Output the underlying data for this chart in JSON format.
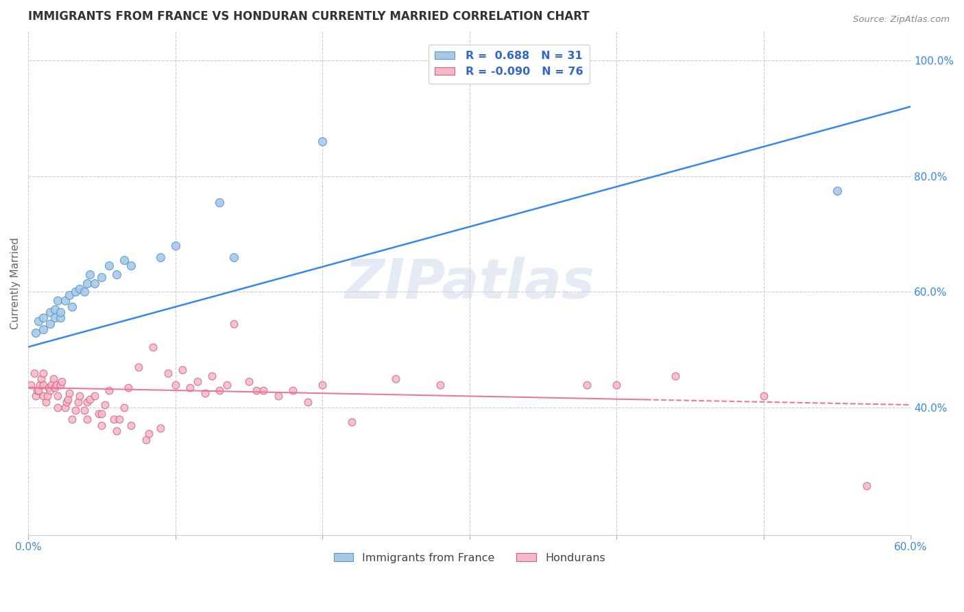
{
  "title": "IMMIGRANTS FROM FRANCE VS HONDURAN CURRENTLY MARRIED CORRELATION CHART",
  "source": "Source: ZipAtlas.com",
  "ylabel": "Currently Married",
  "xlim": [
    0.0,
    0.6
  ],
  "ylim": [
    0.18,
    1.05
  ],
  "xticks": [
    0.0,
    0.1,
    0.2,
    0.3,
    0.4,
    0.5,
    0.6
  ],
  "xtick_labels": [
    "0.0%",
    "",
    "",
    "",
    "",
    "",
    "60.0%"
  ],
  "ytick_labels_right": [
    "100.0%",
    "80.0%",
    "60.0%",
    "40.0%"
  ],
  "ytick_values_right": [
    1.0,
    0.8,
    0.6,
    0.4
  ],
  "watermark": "ZIPatlas",
  "blue_scatter_color": "#a8c8e8",
  "blue_scatter_edge": "#5599cc",
  "pink_scatter_color": "#f5b8c8",
  "pink_scatter_edge": "#d06080",
  "blue_line_color": "#3388ee",
  "pink_line_color": "#ee7799",
  "legend_text_color": "#3366cc",
  "france_x": [
    0.005,
    0.007,
    0.01,
    0.01,
    0.015,
    0.015,
    0.018,
    0.018,
    0.02,
    0.022,
    0.022,
    0.025,
    0.028,
    0.03,
    0.032,
    0.035,
    0.038,
    0.04,
    0.042,
    0.045,
    0.05,
    0.055,
    0.06,
    0.065,
    0.07,
    0.09,
    0.1,
    0.13,
    0.14,
    0.2,
    0.55
  ],
  "france_y": [
    0.53,
    0.55,
    0.535,
    0.555,
    0.545,
    0.565,
    0.555,
    0.57,
    0.585,
    0.555,
    0.565,
    0.585,
    0.595,
    0.575,
    0.6,
    0.605,
    0.6,
    0.615,
    0.63,
    0.615,
    0.625,
    0.645,
    0.63,
    0.655,
    0.645,
    0.66,
    0.68,
    0.755,
    0.66,
    0.86,
    0.775
  ],
  "honduran_x": [
    0.002,
    0.004,
    0.005,
    0.006,
    0.007,
    0.008,
    0.009,
    0.01,
    0.01,
    0.01,
    0.012,
    0.013,
    0.014,
    0.015,
    0.016,
    0.017,
    0.018,
    0.019,
    0.02,
    0.02,
    0.022,
    0.023,
    0.025,
    0.026,
    0.027,
    0.028,
    0.03,
    0.032,
    0.034,
    0.035,
    0.038,
    0.04,
    0.04,
    0.042,
    0.045,
    0.048,
    0.05,
    0.05,
    0.052,
    0.055,
    0.058,
    0.06,
    0.062,
    0.065,
    0.068,
    0.07,
    0.075,
    0.08,
    0.082,
    0.085,
    0.09,
    0.095,
    0.1,
    0.105,
    0.11,
    0.115,
    0.12,
    0.125,
    0.13,
    0.135,
    0.14,
    0.15,
    0.155,
    0.16,
    0.17,
    0.18,
    0.19,
    0.2,
    0.22,
    0.25,
    0.28,
    0.38,
    0.4,
    0.44,
    0.5,
    0.57
  ],
  "honduran_y": [
    0.44,
    0.46,
    0.42,
    0.43,
    0.43,
    0.44,
    0.45,
    0.42,
    0.44,
    0.46,
    0.41,
    0.42,
    0.435,
    0.43,
    0.44,
    0.45,
    0.435,
    0.44,
    0.4,
    0.42,
    0.44,
    0.445,
    0.4,
    0.41,
    0.415,
    0.425,
    0.38,
    0.395,
    0.41,
    0.42,
    0.395,
    0.38,
    0.41,
    0.415,
    0.42,
    0.39,
    0.37,
    0.39,
    0.405,
    0.43,
    0.38,
    0.36,
    0.38,
    0.4,
    0.435,
    0.37,
    0.47,
    0.345,
    0.355,
    0.505,
    0.365,
    0.46,
    0.44,
    0.465,
    0.435,
    0.445,
    0.425,
    0.455,
    0.43,
    0.44,
    0.545,
    0.445,
    0.43,
    0.43,
    0.42,
    0.43,
    0.41,
    0.44,
    0.375,
    0.45,
    0.44,
    0.44,
    0.44,
    0.455,
    0.42,
    0.265
  ]
}
